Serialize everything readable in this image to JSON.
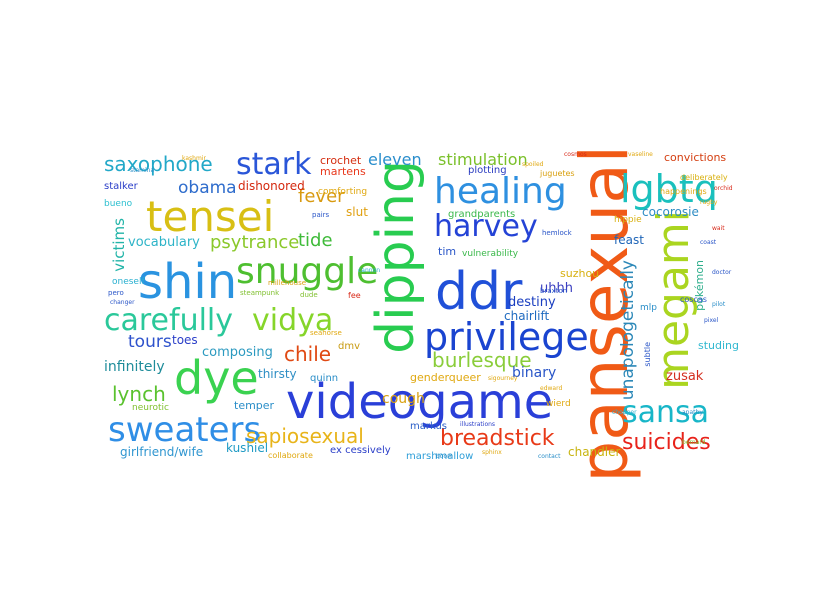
{
  "words": [
    {
      "text": "pansexual",
      "color": "#f05a16",
      "vertical": true
    },
    {
      "text": "dipping",
      "color": "#28cc50",
      "vertical": true
    },
    {
      "text": "videogame",
      "color": "#2a3fd8",
      "vertical": false
    },
    {
      "text": "megami",
      "color": "#aad520",
      "vertical": true
    },
    {
      "text": "shin",
      "color": "#2a93e0",
      "vertical": false
    },
    {
      "text": "ddr",
      "color": "#2050d8",
      "vertical": false
    },
    {
      "text": "dye",
      "color": "#3ad250",
      "vertical": false
    },
    {
      "text": "tensei",
      "color": "#d8bf14",
      "vertical": false
    },
    {
      "text": "healing",
      "color": "#2e90e0",
      "vertical": false
    },
    {
      "text": "privilege",
      "color": "#1a44d0",
      "vertical": false
    },
    {
      "text": "snuggle",
      "color": "#4ebf30",
      "vertical": false
    },
    {
      "text": "lgbtq",
      "color": "#1ac0bd",
      "vertical": false
    },
    {
      "text": "carefully",
      "color": "#2ac89a",
      "vertical": false
    },
    {
      "text": "vidya",
      "color": "#86d52a",
      "vertical": false
    },
    {
      "text": "sweaters",
      "color": "#2f8ee6",
      "vertical": false
    },
    {
      "text": "sansa",
      "color": "#18b6c8",
      "vertical": false
    },
    {
      "text": "harvey",
      "color": "#2443d6",
      "vertical": false
    },
    {
      "text": "stark",
      "color": "#2a56d8",
      "vertical": false
    },
    {
      "text": "breadstick",
      "color": "#e83a18",
      "vertical": false
    },
    {
      "text": "suicides",
      "color": "#e8221a",
      "vertical": false
    },
    {
      "text": "saxophone",
      "color": "#22a8c8",
      "vertical": false
    },
    {
      "text": "sapiosexual",
      "color": "#e8b41a",
      "vertical": false
    },
    {
      "text": "burlesque",
      "color": "#8acd3a",
      "vertical": false
    },
    {
      "text": "unapologetically",
      "color": "#2c88b8",
      "vertical": true
    },
    {
      "text": "chile",
      "color": "#e04a14",
      "vertical": false
    },
    {
      "text": "fever",
      "color": "#d89a10",
      "vertical": false
    },
    {
      "text": "psytrance",
      "color": "#8ac82a",
      "vertical": false
    },
    {
      "text": "tide",
      "color": "#3fbb3a",
      "vertical": false
    },
    {
      "text": "lynch",
      "color": "#5ac22e",
      "vertical": false
    },
    {
      "text": "obama",
      "color": "#2e6ccc",
      "vertical": false
    },
    {
      "text": "tours",
      "color": "#2e52cc",
      "vertical": false
    },
    {
      "text": "eleven",
      "color": "#2a8ecc",
      "vertical": false
    },
    {
      "text": "stimulation",
      "color": "#7ac02a",
      "vertical": false
    },
    {
      "text": "victims",
      "color": "#22b4a8",
      "vertical": true
    },
    {
      "text": "destiny",
      "color": "#1a3ec0",
      "vertical": false
    },
    {
      "text": "chairlift",
      "color": "#1e6ac0",
      "vertical": false
    },
    {
      "text": "binary",
      "color": "#2a56c8",
      "vertical": false
    },
    {
      "text": "zusak",
      "color": "#d42e1e",
      "vertical": false
    },
    {
      "text": "composing",
      "color": "#2c9ac0",
      "vertical": false
    },
    {
      "text": "infinitely",
      "color": "#1e8c9a",
      "vertical": false
    },
    {
      "text": "cough",
      "color": "#d8a010",
      "vertical": false
    },
    {
      "text": "uhhh",
      "color": "#3a3ec0",
      "vertical": false
    },
    {
      "text": "studing",
      "color": "#30b8d0",
      "vertical": false
    },
    {
      "text": "dishonored",
      "color": "#d4280e",
      "vertical": false
    },
    {
      "text": "crochet",
      "color": "#d42c0e",
      "vertical": false
    },
    {
      "text": "convictions",
      "color": "#d43e10",
      "vertical": false
    },
    {
      "text": "girlfriend/wife",
      "color": "#3096d0",
      "vertical": false
    },
    {
      "text": "kushiel",
      "color": "#1e9ac4",
      "vertical": false
    },
    {
      "text": "vocabulary",
      "color": "#2eb4c8",
      "vertical": false
    },
    {
      "text": "cocorosie",
      "color": "#2e8cc4",
      "vertical": false
    },
    {
      "text": "genderqueer",
      "color": "#e0a810",
      "vertical": false
    },
    {
      "text": "thirsty",
      "color": "#2e8ec4",
      "vertical": false
    },
    {
      "text": "chandler",
      "color": "#c8b410",
      "vertical": false
    },
    {
      "text": "pokémon",
      "color": "#2eae8c",
      "vertical": true
    },
    {
      "text": "grandparents",
      "color": "#3ab84a",
      "vertical": false
    },
    {
      "text": "vulnerability",
      "color": "#3ab84a",
      "vertical": false
    },
    {
      "text": "plotting",
      "color": "#2a3cc0",
      "vertical": false
    },
    {
      "text": "feast",
      "color": "#2066b8",
      "vertical": false
    },
    {
      "text": "martens",
      "color": "#e8381c",
      "vertical": false
    },
    {
      "text": "slut",
      "color": "#e0a010",
      "vertical": false
    },
    {
      "text": "tim",
      "color": "#2a56c8",
      "vertical": false
    },
    {
      "text": "markus",
      "color": "#2a5ec8",
      "vertical": false
    },
    {
      "text": "temper",
      "color": "#2a8ec8",
      "vertical": false
    },
    {
      "text": "toes",
      "color": "#2a3ec8",
      "vertical": false
    },
    {
      "text": "ex cessively",
      "color": "#2a3ec8",
      "vertical": false
    },
    {
      "text": "marshmallow",
      "color": "#2e9ed8",
      "vertical": false
    },
    {
      "text": "neurotic",
      "color": "#80c030",
      "vertical": false
    },
    {
      "text": "hippie",
      "color": "#d8b010",
      "vertical": false
    },
    {
      "text": "suzhou",
      "color": "#d8b010",
      "vertical": false
    },
    {
      "text": "quinn",
      "color": "#2a8ec8",
      "vertical": false
    },
    {
      "text": "dmv",
      "color": "#c89a10",
      "vertical": false
    },
    {
      "text": "comforting",
      "color": "#e0a810",
      "vertical": false
    },
    {
      "text": "stalker",
      "color": "#2a3ec8",
      "vertical": false
    },
    {
      "text": "wierd",
      "color": "#e0a810",
      "vertical": false
    },
    {
      "text": "mlp",
      "color": "#2a8ec8",
      "vertical": false
    },
    {
      "text": "oneself",
      "color": "#2ab0d0",
      "vertical": false
    },
    {
      "text": "collaborate",
      "color": "#e0a810",
      "vertical": false
    },
    {
      "text": "bueno",
      "color": "#2ec0d0",
      "vertical": false
    },
    {
      "text": "coscas",
      "color": "#2a56c8",
      "vertical": false
    },
    {
      "text": "juguetes",
      "color": "#d8a010",
      "vertical": false
    },
    {
      "text": "deliberately",
      "color": "#d8b010",
      "vertical": false
    },
    {
      "text": "subtle",
      "color": "#2a56c8",
      "vertical": true
    },
    {
      "text": "seahorse",
      "color": "#e0a810",
      "vertical": false
    },
    {
      "text": "pero",
      "color": "#2a56c8",
      "vertical": false
    },
    {
      "text": "hemlock",
      "color": "#2a56c8",
      "vertical": false
    },
    {
      "text": "braxton",
      "color": "#2a56c8",
      "vertical": false
    },
    {
      "text": "pairs",
      "color": "#2a56c8",
      "vertical": false
    },
    {
      "text": "fee",
      "color": "#d82a1a",
      "vertical": false
    },
    {
      "text": "happenings",
      "color": "#e0a810",
      "vertical": false
    },
    {
      "text": "illustrations",
      "color": "#2a3ec8",
      "vertical": false
    },
    {
      "text": "steampunk",
      "color": "#80c030",
      "vertical": false
    },
    {
      "text": "millehouse",
      "color": "#d8a010",
      "vertical": false
    },
    {
      "text": "sigourney",
      "color": "#e0a810",
      "vertical": false
    },
    {
      "text": "edward",
      "color": "#e0a810",
      "vertical": false
    },
    {
      "text": "contact",
      "color": "#2a8ec8",
      "vertical": false
    },
    {
      "text": "sphinx",
      "color": "#e0a810",
      "vertical": false
    },
    {
      "text": "boom",
      "color": "#2a8ec8",
      "vertical": false
    },
    {
      "text": "spoiled",
      "color": "#e0a810",
      "vertical": false
    },
    {
      "text": "cosmos",
      "color": "#d82a1a",
      "vertical": false
    },
    {
      "text": "vaseline",
      "color": "#e0a810",
      "vertical": false
    },
    {
      "text": "chopper",
      "color": "#2ab0d0",
      "vertical": false
    },
    {
      "text": "bernard",
      "color": "#80c030",
      "vertical": false
    },
    {
      "text": "apathy",
      "color": "#2a8ec8",
      "vertical": false
    },
    {
      "text": "rugby",
      "color": "#e0a810",
      "vertical": false
    },
    {
      "text": "coast",
      "color": "#2a56c8",
      "vertical": false
    },
    {
      "text": "pixel",
      "color": "#2a56c8",
      "vertical": false
    },
    {
      "text": "doctor",
      "color": "#2a56c8",
      "vertical": false
    },
    {
      "text": "pilot",
      "color": "#2a8ec8",
      "vertical": false
    },
    {
      "text": "changer",
      "color": "#2a56c8",
      "vertical": false
    },
    {
      "text": "wait",
      "color": "#d82a1a",
      "vertical": false
    },
    {
      "text": "kashmir",
      "color": "#e0a810",
      "vertical": false
    },
    {
      "text": "stamina",
      "color": "#2a8ec8",
      "vertical": false
    },
    {
      "text": "dude",
      "color": "#80c030",
      "vertical": false
    },
    {
      "text": "cannon",
      "color": "#2ab0d0",
      "vertical": false
    },
    {
      "text": "orchid",
      "color": "#d82a1a",
      "vertical": false
    }
  ]
}
